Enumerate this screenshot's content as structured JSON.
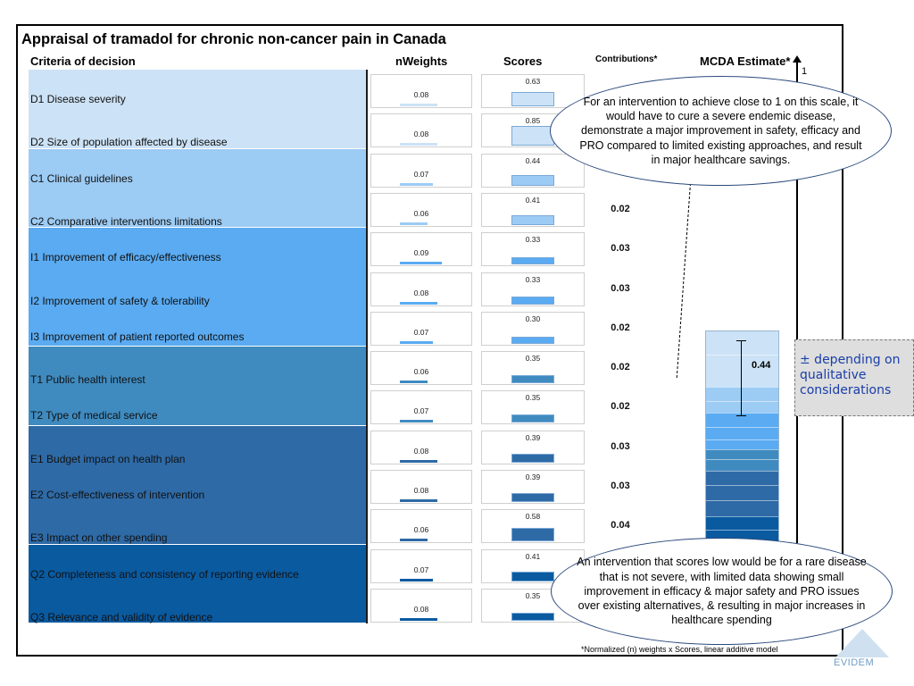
{
  "title": "Appraisal of tramadol for chronic non-cancer pain in Canada",
  "headers": {
    "criteria": "Criteria of decision",
    "weights": "nWeights",
    "scores": "Scores",
    "contributions": "Contributions*",
    "mcda": "MCDA Estimate*"
  },
  "axis_top_label": "1",
  "mcda_value": "0.44",
  "ellipse_top": "For an intervention to achieve close to 1 on this scale, it would have to cure a severe endemic disease, demonstrate a major improvement in safety, efficacy and PRO compared to limited existing approaches, and result in major healthcare savings.",
  "ellipse_bottom": "An intervention that scores low would be for a rare disease that is not severe, with limited data showing small improvement in efficacy & major safety and PRO issues over existing alternatives, & resulting in major increases in healthcare spending",
  "callout": "± depending on qualitative considerations",
  "footnote": "*Normalized (n) weights x Scores, linear additive model",
  "logo_text": "EVIDEM",
  "colors": {
    "D": "#cce2f6",
    "C": "#9ccbf4",
    "I": "#5aabf2",
    "T": "#3f8bc0",
    "E": "#2e6aa6",
    "Q": "#0a5aa0"
  },
  "chart_data": {
    "type": "table",
    "title": "Appraisal of tramadol for chronic non-cancer pain in Canada",
    "columns": [
      "Criteria of decision",
      "nWeights",
      "Scores",
      "Contributions*"
    ],
    "criteria": [
      {
        "code": "D1",
        "label": "D1   Disease severity",
        "weight": "0.08",
        "score": "0.63",
        "contribution": "",
        "group": "D"
      },
      {
        "code": "D2",
        "label": "D2   Size of population affected by disease",
        "weight": "0.08",
        "score": "0.85",
        "contribution": "",
        "group": "D"
      },
      {
        "code": "C1",
        "label": "C1   Clinical guidelines",
        "weight": "0.07",
        "score": "0.44",
        "contribution": "",
        "group": "C"
      },
      {
        "code": "C2",
        "label": "C2   Comparative interventions limitations",
        "weight": "0.06",
        "score": "0.41",
        "contribution": "0.02",
        "group": "C"
      },
      {
        "code": "I1",
        "label": "I1   Improvement of efficacy/effectiveness",
        "weight": "0.09",
        "score": "0.33",
        "contribution": "0.03",
        "group": "I"
      },
      {
        "code": "I2",
        "label": "I2   Improvement of safety & tolerability",
        "weight": "0.08",
        "score": "0.33",
        "contribution": "0.03",
        "group": "I"
      },
      {
        "code": "I3",
        "label": "I3   Improvement of patient reported outcomes",
        "weight": "0.07",
        "score": "0.30",
        "contribution": "0.02",
        "group": "I"
      },
      {
        "code": "T1",
        "label": "T1   Public health interest",
        "weight": "0.06",
        "score": "0.35",
        "contribution": "0.02",
        "group": "T"
      },
      {
        "code": "T2",
        "label": "T2   Type of medical service",
        "weight": "0.07",
        "score": "0.35",
        "contribution": "0.02",
        "group": "T"
      },
      {
        "code": "E1",
        "label": "E1   Budget impact on health plan",
        "weight": "0.08",
        "score": "0.39",
        "contribution": "0.03",
        "group": "E"
      },
      {
        "code": "E2",
        "label": "E2   Cost-effectiveness of intervention",
        "weight": "0.08",
        "score": "0.39",
        "contribution": "0.03",
        "group": "E"
      },
      {
        "code": "E3",
        "label": "E3   Impact on other spending",
        "weight": "0.06",
        "score": "0.58",
        "contribution": "0.04",
        "group": "E"
      },
      {
        "code": "Q2",
        "label": "Q2   Completeness and consistency of reporting evidence",
        "weight": "0.07",
        "score": "0.41",
        "contribution": "",
        "group": "Q"
      },
      {
        "code": "Q3",
        "label": "Q3   Relevance and validity of evidence",
        "weight": "0.08",
        "score": "0.35",
        "contribution": "",
        "group": "Q"
      }
    ],
    "mcda_estimate": 0.44,
    "mcda_axis_max": 1
  }
}
